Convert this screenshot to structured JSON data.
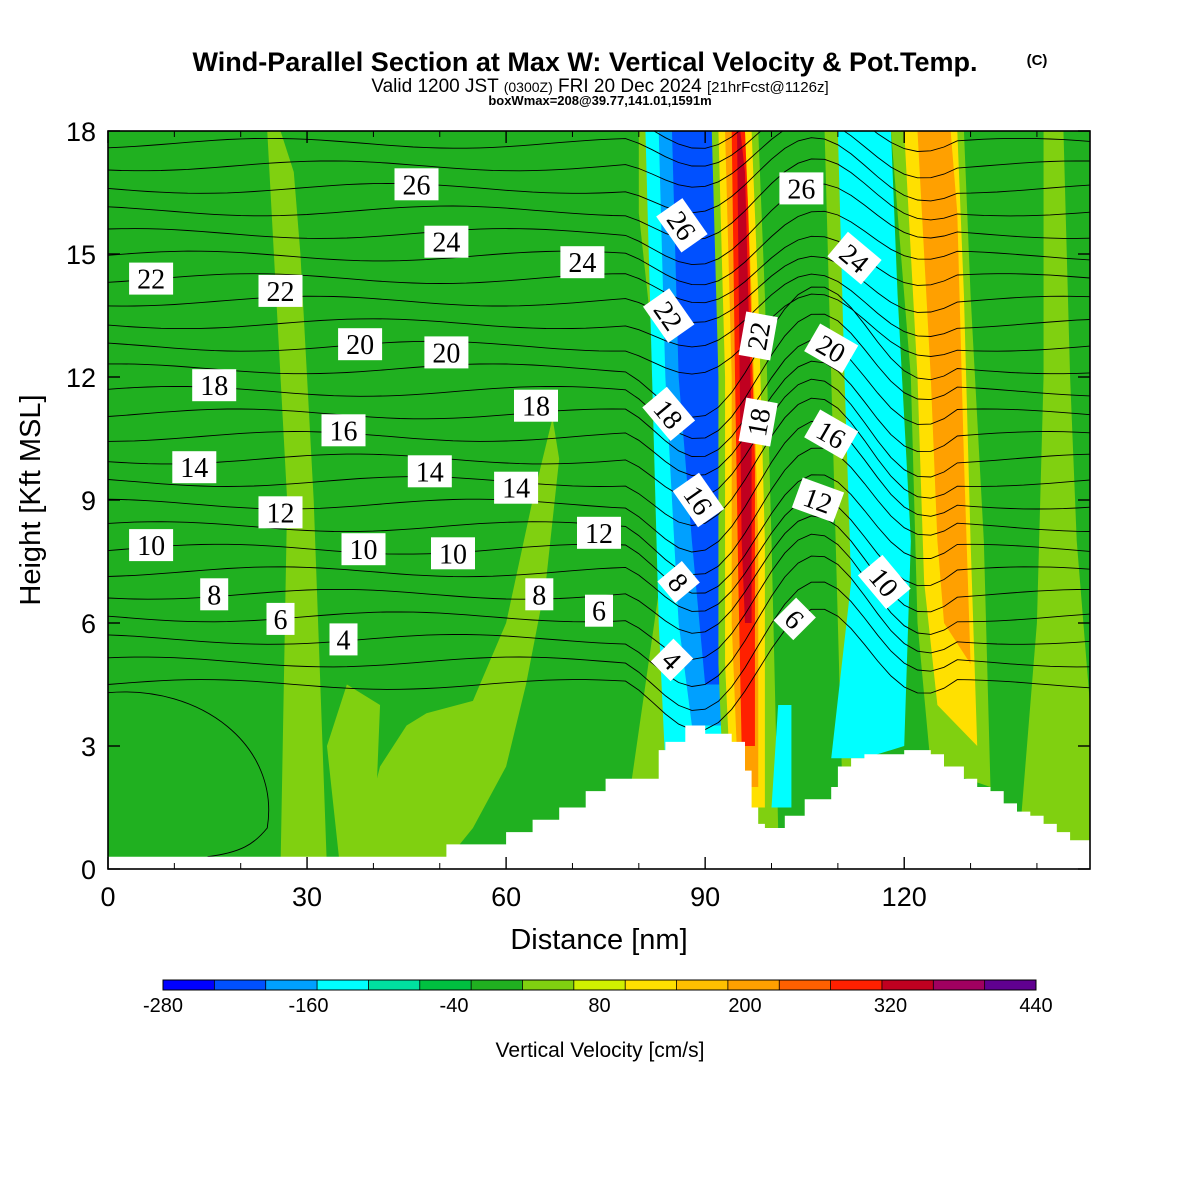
{
  "chart_data": {
    "type": "contour",
    "title": "Wind-Parallel Section at Max W: Vertical Velocity & Pot.Temp.",
    "title_mark": "(C)",
    "subtitle": {
      "valid_prefix": "Valid 1200 JST",
      "utc": "(0300Z)",
      "valid_suffix": "FRI 20 Dec 2024",
      "forecast": "[21hrFcst@1126z]"
    },
    "box_info": "boxWmax=208@39.77,141.01,1591m",
    "xlabel": "Distance [nm]",
    "ylabel": "Height [Kft MSL]",
    "xlim": [
      0,
      148
    ],
    "ylim": [
      0,
      18
    ],
    "xticks": [
      0,
      30,
      60,
      90,
      120
    ],
    "yticks": [
      0,
      3,
      6,
      9,
      12,
      15,
      18
    ],
    "terrain": [
      [
        0,
        0.3
      ],
      [
        6,
        0.3
      ],
      [
        12,
        0.3
      ],
      [
        18,
        0.3
      ],
      [
        24,
        0.3
      ],
      [
        30,
        0.3
      ],
      [
        36,
        0.3
      ],
      [
        42,
        0.3
      ],
      [
        48,
        0.3
      ],
      [
        51,
        0.6
      ],
      [
        54,
        0.6
      ],
      [
        57,
        0.6
      ],
      [
        60,
        0.9
      ],
      [
        61,
        0.9
      ],
      [
        64,
        1.2
      ],
      [
        65,
        1.2
      ],
      [
        68,
        1.5
      ],
      [
        69,
        1.5
      ],
      [
        72,
        1.9
      ],
      [
        75,
        2.2
      ],
      [
        80,
        2.2
      ],
      [
        83,
        2.9
      ],
      [
        84,
        3.1
      ],
      [
        87,
        3.5
      ],
      [
        89,
        3.5
      ],
      [
        90,
        3.3
      ],
      [
        92,
        3.3
      ],
      [
        94,
        3.1
      ],
      [
        96,
        2.4
      ],
      [
        97,
        1.5
      ],
      [
        98,
        1.1
      ],
      [
        99,
        1.0
      ],
      [
        101,
        1.0
      ],
      [
        102,
        1.3
      ],
      [
        104,
        1.3
      ],
      [
        105,
        1.7
      ],
      [
        107,
        1.7
      ],
      [
        109,
        2.0
      ],
      [
        110,
        2.5
      ],
      [
        112,
        2.7
      ],
      [
        114,
        2.8
      ],
      [
        120,
        2.9
      ],
      [
        124,
        2.8
      ],
      [
        126,
        2.5
      ],
      [
        129,
        2.2
      ],
      [
        131,
        2.0
      ],
      [
        133,
        1.9
      ],
      [
        135,
        1.6
      ],
      [
        137,
        1.4
      ],
      [
        139,
        1.3
      ],
      [
        141,
        1.1
      ],
      [
        143,
        0.9
      ],
      [
        145,
        0.7
      ],
      [
        148,
        0.7
      ]
    ],
    "colorbar": {
      "label": "Vertical Velocity [cm/s]",
      "min": -280,
      "step": 40,
      "tick_labels": [
        "-280",
        "-160",
        "-40",
        "80",
        "200",
        "320",
        "440"
      ],
      "colors": [
        "#0000ff",
        "#0050ff",
        "#00a0ff",
        "#00ffff",
        "#00e0a0",
        "#00c040",
        "#20b020",
        "#80d010",
        "#d0f000",
        "#ffe000",
        "#ffc000",
        "#ffa000",
        "#ff6000",
        "#ff2000",
        "#c00020",
        "#a00060",
        "#600090"
      ]
    },
    "vv_band_colors": {
      "strong_down": "#0050ff",
      "down": "#00a0ff",
      "weak_down": "#00ffff",
      "near_zero": "#20b020",
      "weak_up": "#80d010",
      "up_yellow": "#ffe000",
      "up_orange": "#ffa000",
      "up_red": "#ff2000",
      "up_dark_red": "#c00020",
      "background": "#20b020"
    },
    "theta_labels": [
      {
        "text": "26",
        "x": 46.5,
        "y": 16.7,
        "rot": 0
      },
      {
        "text": "24",
        "x": 51.0,
        "y": 15.3,
        "rot": 0
      },
      {
        "text": "24",
        "x": 71.5,
        "y": 14.8,
        "rot": 0
      },
      {
        "text": "26",
        "x": 104.5,
        "y": 16.6,
        "rot": 0
      },
      {
        "text": "26",
        "x": 86.5,
        "y": 15.7,
        "rot": 55
      },
      {
        "text": "24",
        "x": 112.5,
        "y": 14.9,
        "rot": 40
      },
      {
        "text": "22",
        "x": 6.5,
        "y": 14.4,
        "rot": 0
      },
      {
        "text": "22",
        "x": 26.0,
        "y": 14.1,
        "rot": 0
      },
      {
        "text": "22",
        "x": 84.5,
        "y": 13.5,
        "rot": 55
      },
      {
        "text": "22",
        "x": 98.0,
        "y": 13.0,
        "rot": -80
      },
      {
        "text": "20",
        "x": 38.0,
        "y": 12.8,
        "rot": 0
      },
      {
        "text": "20",
        "x": 51.0,
        "y": 12.6,
        "rot": 0
      },
      {
        "text": "20",
        "x": 109.0,
        "y": 12.7,
        "rot": 30
      },
      {
        "text": "18",
        "x": 16.0,
        "y": 11.8,
        "rot": 0
      },
      {
        "text": "18",
        "x": 64.5,
        "y": 11.3,
        "rot": 0
      },
      {
        "text": "18",
        "x": 84.5,
        "y": 11.1,
        "rot": 50
      },
      {
        "text": "18",
        "x": 98.0,
        "y": 10.9,
        "rot": -80
      },
      {
        "text": "16",
        "x": 35.5,
        "y": 10.7,
        "rot": 0
      },
      {
        "text": "16",
        "x": 109.0,
        "y": 10.6,
        "rot": 30
      },
      {
        "text": "14",
        "x": 13.0,
        "y": 9.8,
        "rot": 0
      },
      {
        "text": "14",
        "x": 48.5,
        "y": 9.7,
        "rot": 0
      },
      {
        "text": "14",
        "x": 61.5,
        "y": 9.3,
        "rot": 0
      },
      {
        "text": "16",
        "x": 89.0,
        "y": 9.0,
        "rot": 55
      },
      {
        "text": "12",
        "x": 107.0,
        "y": 9.0,
        "rot": 20
      },
      {
        "text": "12",
        "x": 26.0,
        "y": 8.7,
        "rot": 0
      },
      {
        "text": "12",
        "x": 74.0,
        "y": 8.2,
        "rot": 0
      },
      {
        "text": "10",
        "x": 6.5,
        "y": 7.9,
        "rot": 0
      },
      {
        "text": "10",
        "x": 38.5,
        "y": 7.8,
        "rot": 0
      },
      {
        "text": "10",
        "x": 52.0,
        "y": 7.7,
        "rot": 0
      },
      {
        "text": "10",
        "x": 117.0,
        "y": 7.0,
        "rot": 50
      },
      {
        "text": "8",
        "x": 16.0,
        "y": 6.7,
        "rot": 0
      },
      {
        "text": "8",
        "x": 65.0,
        "y": 6.7,
        "rot": 0
      },
      {
        "text": "8",
        "x": 86.0,
        "y": 7.0,
        "rot": 50
      },
      {
        "text": "6",
        "x": 26.0,
        "y": 6.1,
        "rot": 0
      },
      {
        "text": "6",
        "x": 74.0,
        "y": 6.3,
        "rot": 0
      },
      {
        "text": "6",
        "x": 103.5,
        "y": 6.1,
        "rot": 45
      },
      {
        "text": "4",
        "x": 35.5,
        "y": 5.6,
        "rot": 0
      },
      {
        "text": "4",
        "x": 85.0,
        "y": 5.1,
        "rot": 45
      }
    ]
  }
}
